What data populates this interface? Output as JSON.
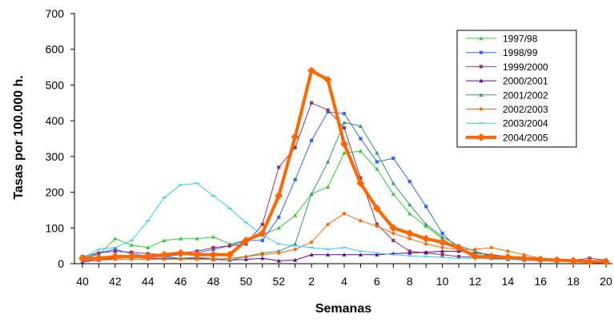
{
  "chart_data": {
    "type": "line",
    "title": "",
    "xlabel": "Semanas",
    "ylabel": "Tasas por 100.000 h.",
    "ylim": [
      0,
      700
    ],
    "yticks": [
      0,
      100,
      200,
      300,
      400,
      500,
      600,
      700
    ],
    "grid": false,
    "legend_position": "top-right",
    "x": [
      "40",
      "41",
      "42",
      "43",
      "44",
      "45",
      "46",
      "47",
      "48",
      "49",
      "50",
      "51",
      "52",
      "1",
      "2",
      "3",
      "4",
      "5",
      "6",
      "7",
      "8",
      "9",
      "10",
      "11",
      "12",
      "13",
      "14",
      "15",
      "16",
      "17",
      "18",
      "19",
      "20"
    ],
    "x_tick_labels": [
      "40",
      "42",
      "44",
      "46",
      "48",
      "50",
      "52",
      "2",
      "4",
      "6",
      "8",
      "10",
      "12",
      "14",
      "16",
      "18",
      "20"
    ],
    "series": [
      {
        "name": "1997/98",
        "color": "#33cc33",
        "marker": "triangle",
        "width": 1,
        "values": [
          18,
          25,
          70,
          52,
          45,
          65,
          70,
          70,
          75,
          55,
          65,
          80,
          100,
          135,
          195,
          215,
          310,
          315,
          265,
          195,
          140,
          105,
          70,
          40,
          20,
          15,
          12,
          10,
          8,
          7,
          6,
          5,
          5
        ]
      },
      {
        "name": "1998/99",
        "color": "#3366ff",
        "marker": "square",
        "width": 1,
        "values": [
          10,
          30,
          40,
          28,
          20,
          20,
          25,
          30,
          40,
          50,
          65,
          65,
          130,
          235,
          345,
          425,
          420,
          350,
          285,
          295,
          230,
          160,
          85,
          40,
          20,
          15,
          12,
          10,
          8,
          7,
          6,
          5,
          5
        ]
      },
      {
        "name": "1999/2000",
        "color": "#993366",
        "marker": "square",
        "width": 1,
        "values": [
          20,
          30,
          35,
          32,
          28,
          25,
          30,
          35,
          45,
          50,
          55,
          110,
          270,
          325,
          450,
          430,
          380,
          240,
          110,
          65,
          35,
          30,
          25,
          20,
          18,
          15,
          15,
          12,
          12,
          10,
          10,
          15,
          10
        ]
      },
      {
        "name": "2000/2001",
        "color": "#660099",
        "marker": "triangle",
        "width": 1,
        "values": [
          5,
          10,
          15,
          18,
          15,
          15,
          15,
          15,
          12,
          10,
          12,
          15,
          8,
          10,
          25,
          25,
          25,
          25,
          25,
          28,
          30,
          32,
          35,
          35,
          30,
          25,
          20,
          15,
          12,
          10,
          8,
          6,
          5
        ]
      },
      {
        "name": "2001/2002",
        "color": "#339966",
        "marker": "triangle",
        "width": 1,
        "values": [
          10,
          15,
          20,
          20,
          20,
          20,
          15,
          18,
          15,
          10,
          20,
          30,
          35,
          55,
          195,
          285,
          395,
          385,
          310,
          225,
          165,
          110,
          75,
          50,
          35,
          20,
          15,
          12,
          10,
          8,
          7,
          6,
          5
        ]
      },
      {
        "name": "2002/2003",
        "color": "#ff6600",
        "marker": "diamond",
        "width": 1,
        "values": [
          8,
          10,
          12,
          12,
          12,
          12,
          12,
          12,
          12,
          15,
          20,
          25,
          30,
          40,
          60,
          110,
          140,
          120,
          105,
          85,
          70,
          55,
          45,
          40,
          40,
          45,
          35,
          25,
          15,
          10,
          8,
          6,
          5
        ]
      },
      {
        "name": "2003/2004",
        "color": "#33ccff",
        "marker": "dash",
        "width": 1,
        "values": [
          15,
          40,
          45,
          65,
          120,
          185,
          220,
          225,
          190,
          155,
          115,
          80,
          55,
          50,
          45,
          40,
          45,
          35,
          30,
          25,
          22,
          20,
          18,
          15,
          15,
          12,
          12,
          10,
          10,
          8,
          7,
          6,
          5
        ]
      },
      {
        "name": "2004/2005",
        "color": "#ff6600",
        "marker": "diamond",
        "width": 4,
        "values": [
          15,
          15,
          20,
          20,
          20,
          25,
          30,
          25,
          25,
          25,
          65,
          85,
          190,
          355,
          540,
          515,
          335,
          225,
          155,
          100,
          85,
          70,
          60,
          45,
          20,
          20,
          18,
          15,
          12,
          10,
          8,
          6,
          5
        ]
      }
    ]
  }
}
